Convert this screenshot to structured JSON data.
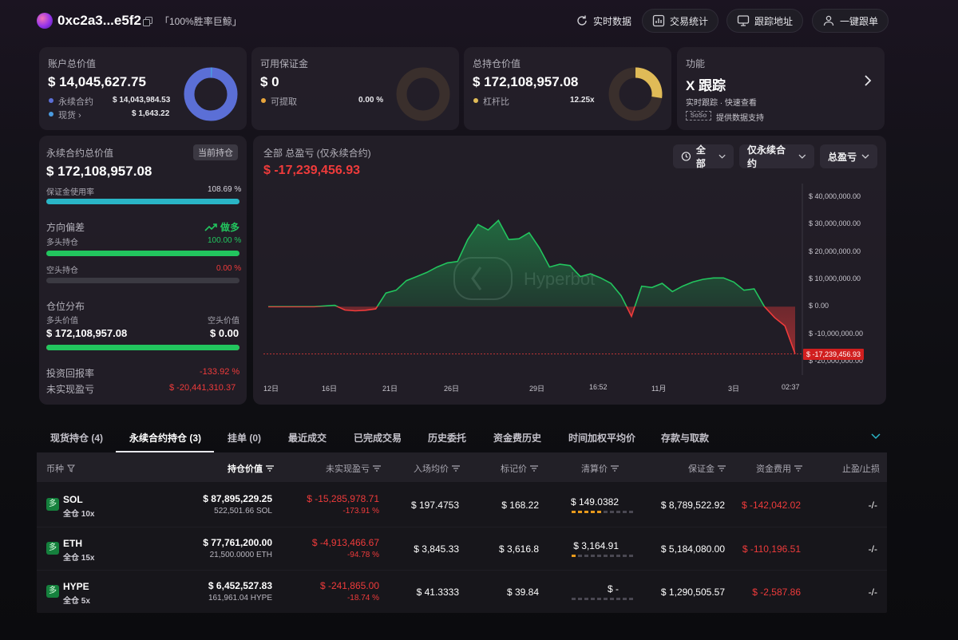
{
  "header": {
    "address": "0xc2a3...e5f2",
    "tag": "「100%胜率巨鲸」",
    "realtime_label": "实时数据",
    "trade_stats_label": "交易统计",
    "track_address_label": "跟踪地址",
    "copy_trade_label": "一键跟单"
  },
  "account": {
    "title": "账户总价值",
    "value": "$ 14,045,627.75",
    "perp_label": "永续合约",
    "perp_value": "$ 14,043,984.53",
    "spot_label": "现货",
    "spot_value": "$ 1,643.22",
    "perp_color": "#5b6fd6",
    "spot_color": "#4a9be0"
  },
  "margin": {
    "title": "可用保证金",
    "value": "$ 0",
    "withdrawable_label": "可提取",
    "withdrawable_value": "0.00 %",
    "dot_color": "#e8a53c"
  },
  "positions_total": {
    "title": "总持仓价值",
    "value": "$ 172,108,957.08",
    "leverage_label": "杠杆比",
    "leverage_value": "12.25x",
    "dot_color": "#e0bb57"
  },
  "feature": {
    "title": "功能",
    "name": "X 跟踪",
    "desc": "实时跟踪 · 快速查看",
    "source_logo": "SoSoValue",
    "source_text": "提供数据支持"
  },
  "perp_summary": {
    "title": "永续合约总价值",
    "badge": "当前持仓",
    "value": "$ 172,108,957.08",
    "margin_usage_label": "保证金使用率",
    "margin_usage_value": "108.69 %",
    "margin_usage_pct": 100,
    "direction_label": "方向偏差",
    "direction_value": "做多",
    "long_label": "多头持仓",
    "long_pct_text": "100.00 %",
    "long_pct": 100,
    "short_label": "空头持仓",
    "short_pct_text": "0.00 %",
    "short_pct": 0,
    "dist_label": "仓位分布",
    "long_value_label": "多头价值",
    "short_value_label": "空头价值",
    "long_value": "$ 172,108,957.08",
    "short_value": "$ 0.00",
    "dist_pct": 100,
    "roi_label": "投资回报率",
    "roi_value": "-133.92 %",
    "upnl_label": "未实现盈亏",
    "upnl_value": "$ -20,441,310.37"
  },
  "pnl_chart": {
    "title": "全部 总盈亏 (仅永续合约)",
    "value": "$ -17,239,456.93",
    "filter_all": "全部",
    "filter_perp": "仅永续合约",
    "filter_metric": "总盈亏",
    "watermark": "Hyperbot",
    "current_label": "$ -17,239,456.93"
  },
  "chart_data": {
    "type": "area",
    "title": "全部 总盈亏 (仅永续合约)",
    "y_ticks": [
      "$ 40,000,000.00",
      "$ 30,000,000.00",
      "$ 20,000,000.00",
      "$ 10,000,000.00",
      "$ 0.00",
      "$ -10,000,000.00",
      "$ -20,000,000.00"
    ],
    "x_ticks": [
      "12日",
      "16日",
      "21日",
      "26日",
      "29日",
      "16:52",
      "11月",
      "3日",
      "02:37"
    ],
    "ylim": [
      -20000000,
      40000000
    ],
    "x": [
      0,
      9,
      13,
      15,
      17,
      19,
      21,
      23,
      25,
      27,
      29,
      31,
      33,
      35,
      37,
      39,
      41,
      43,
      45,
      47,
      49,
      51,
      53,
      55,
      57,
      59,
      61,
      63,
      65,
      67,
      69,
      71,
      73,
      75,
      77,
      79,
      81,
      83,
      85,
      87,
      89,
      91,
      93,
      95,
      97,
      99,
      101,
      103
    ],
    "values": [
      0,
      0,
      500000,
      -1200000,
      -1500000,
      -1300000,
      -800000,
      5000000,
      6000000,
      9500000,
      11000000,
      12500000,
      14500000,
      16000000,
      16500000,
      24500000,
      30000000,
      28000000,
      31500000,
      24500000,
      24800000,
      27000000,
      21500000,
      14500000,
      15500000,
      15000000,
      11000000,
      12000000,
      10500000,
      8500000,
      4000000,
      -3500000,
      7500000,
      7000000,
      8500000,
      5500000,
      7500000,
      9000000,
      10000000,
      10500000,
      10500000,
      9000000,
      6000000,
      6500000,
      0,
      -4000000,
      -7000000,
      -17239456.93
    ],
    "current_value": -17239456.93
  },
  "tabs": [
    {
      "label": "现货持仓 (4)"
    },
    {
      "label": "永续合约持仓 (3)"
    },
    {
      "label": "挂单 (0)"
    },
    {
      "label": "最近成交"
    },
    {
      "label": "已完成交易"
    },
    {
      "label": "历史委托"
    },
    {
      "label": "资金费历史"
    },
    {
      "label": "时间加权平均价"
    },
    {
      "label": "存款与取款"
    }
  ],
  "table": {
    "headers": [
      "币种",
      "持仓价值",
      "未实现盈亏",
      "入场均价",
      "标记价",
      "清算价",
      "保证金",
      "资金费用",
      "止盈/止损"
    ],
    "rows": [
      {
        "badge": "多",
        "coin": "SOL",
        "mode": "全仓 10x",
        "value": "$ 87,895,229.25",
        "size": "522,501.66 SOL",
        "upnl": "$ -15,285,978.71",
        "upnl_pct": "-173.91 %",
        "entry": "$ 197.4753",
        "mark": "$ 168.22",
        "liq": "$ 149.0382",
        "liq_risk": 5,
        "margin": "$ 8,789,522.92",
        "funding": "$ -142,042.02",
        "tpsl": "-/-"
      },
      {
        "badge": "多",
        "coin": "ETH",
        "mode": "全仓 15x",
        "value": "$ 77,761,200.00",
        "size": "21,500.0000 ETH",
        "upnl": "$ -4,913,466.67",
        "upnl_pct": "-94.78 %",
        "entry": "$ 3,845.33",
        "mark": "$ 3,616.8",
        "liq": "$ 3,164.91",
        "liq_risk": 1,
        "margin": "$ 5,184,080.00",
        "funding": "$ -110,196.51",
        "tpsl": "-/-"
      },
      {
        "badge": "多",
        "coin": "HYPE",
        "mode": "全仓 5x",
        "value": "$ 6,452,527.83",
        "size": "161,961.04 HYPE",
        "upnl": "$ -241,865.00",
        "upnl_pct": "-18.74 %",
        "entry": "$ 41.3333",
        "mark": "$ 39.84",
        "liq": "$ -",
        "liq_risk": 0,
        "margin": "$ 1,290,505.57",
        "funding": "$ -2,587.86",
        "tpsl": "-/-"
      }
    ]
  }
}
